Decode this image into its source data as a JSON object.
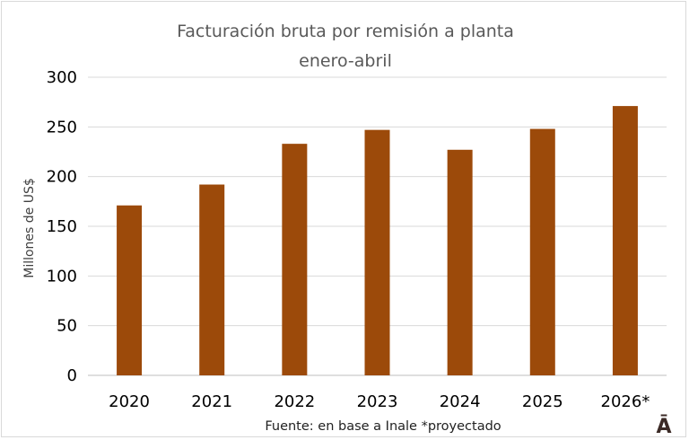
{
  "chart_data": {
    "type": "bar",
    "title": "Facturación  bruta por remisión a planta",
    "subtitle": "enero-abril",
    "ylabel": "Millones de US$",
    "xlabel": "",
    "categories": [
      "2020",
      "2021",
      "2022",
      "2023",
      "2024",
      "2025",
      "2026*"
    ],
    "values": [
      171,
      192,
      233,
      247,
      227,
      248,
      271
    ],
    "ylim": [
      0,
      300
    ],
    "yticks": [
      0,
      50,
      100,
      150,
      200,
      250,
      300
    ],
    "grid": true,
    "legend": "none",
    "bar_color": "#9c4a0a"
  },
  "source_note": "Fuente: en base a Inale *proyectado",
  "logo_text": "Ā"
}
